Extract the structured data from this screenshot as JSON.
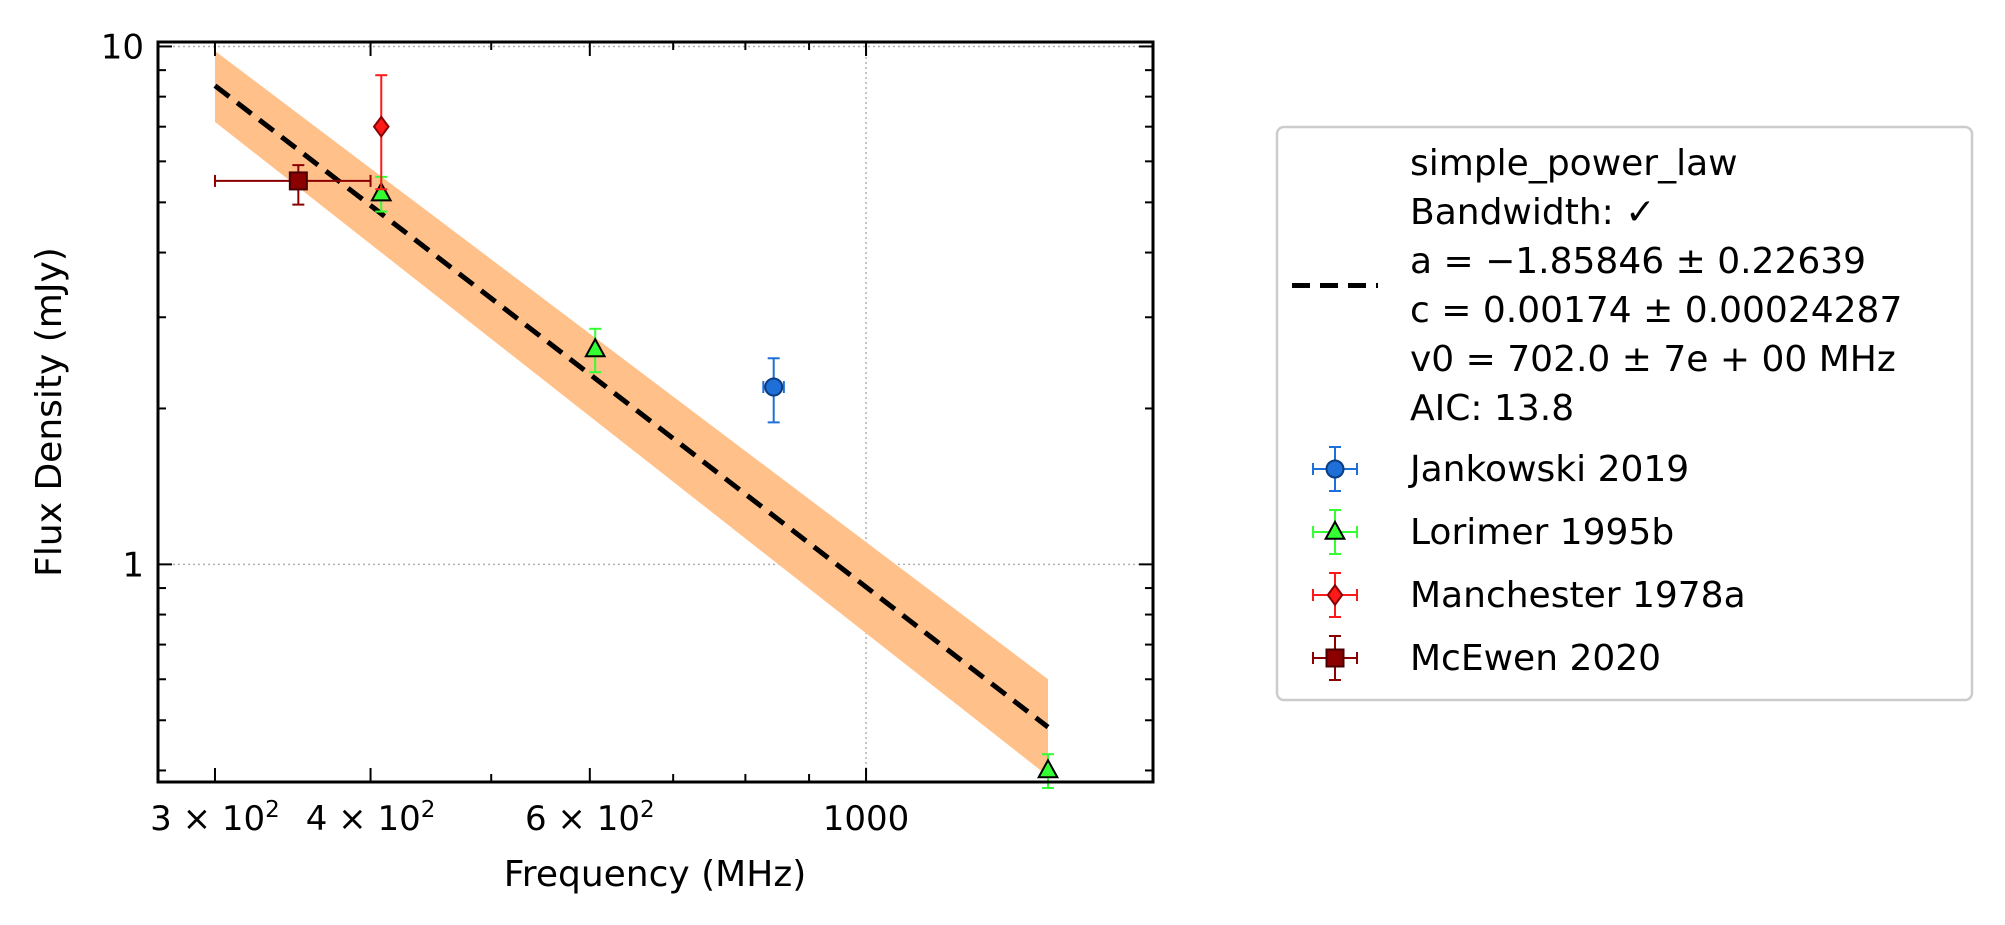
{
  "chart_data": {
    "type": "scatter",
    "title": "",
    "xlabel": "Frequency (MHz)",
    "ylabel": "Flux Density (mJy)",
    "xscale": "log",
    "yscale": "log",
    "xlim": [
      270,
      1700
    ],
    "ylim": [
      0.38,
      10.2
    ],
    "grid": true,
    "legend_position": "outside-right",
    "x_ticks": [
      {
        "value": 300,
        "label_main": "3 × 10",
        "label_sup": "2"
      },
      {
        "value": 400,
        "label_main": "4 × 10",
        "label_sup": "2"
      },
      {
        "value": 600,
        "label_main": "6 × 10",
        "label_sup": "2"
      },
      {
        "value": 1000,
        "label_main": "1000",
        "label_sup": ""
      }
    ],
    "y_ticks": [
      {
        "value": 1,
        "label": "1"
      },
      {
        "value": 10,
        "label": "10"
      }
    ],
    "fit": {
      "name": "simple_power_law",
      "legend_lines": [
        "simple_power_law",
        "Bandwidth: ✓",
        "a = −1.85846 ± 0.22639",
        "c = 0.00174 ± 0.00024287",
        "v0 = 702.0 ± 7e + 00 MHz",
        "AIC: 13.8"
      ],
      "line_color": "#000000",
      "band_color": "#ffc08a",
      "x_range": [
        300,
        1400
      ],
      "line": [
        {
          "x": 300,
          "y": 8.4
        },
        {
          "x": 1400,
          "y": 0.485
        }
      ],
      "band_upper": [
        {
          "x": 300,
          "y": 9.8
        },
        {
          "x": 1400,
          "y": 0.6
        }
      ],
      "band_lower": [
        {
          "x": 300,
          "y": 7.15
        },
        {
          "x": 1400,
          "y": 0.39
        }
      ]
    },
    "series": [
      {
        "name": "Jankowski 2019",
        "marker": "circle",
        "color": "#1f6fd8",
        "edge": "#0a3d80",
        "points": [
          {
            "x": 843,
            "y": 2.2,
            "xerr": 16,
            "ylo": 0.32,
            "yhi": 0.3
          }
        ]
      },
      {
        "name": "Lorimer 1995b",
        "marker": "triangle",
        "color": "#33ff33",
        "edge": "#1a7f1a",
        "points": [
          {
            "x": 408,
            "y": 5.2,
            "xerr": 0,
            "ylo": 0.4,
            "yhi": 0.4
          },
          {
            "x": 606,
            "y": 2.6,
            "xerr": 0,
            "ylo": 0.25,
            "yhi": 0.25
          },
          {
            "x": 1400,
            "y": 0.4,
            "xerr": 0,
            "ylo": 0.03,
            "yhi": 0.03
          }
        ]
      },
      {
        "name": "Manchester 1978a",
        "marker": "diamond",
        "color": "#ff1a1a",
        "edge": "#8b0000",
        "points": [
          {
            "x": 408,
            "y": 7.0,
            "xerr": 0,
            "ylo": 1.7,
            "yhi": 1.8
          }
        ]
      },
      {
        "name": "McEwen 2020",
        "marker": "square",
        "color": "#8b0000",
        "edge": "#4a0000",
        "points": [
          {
            "x": 350,
            "y": 5.5,
            "xerr_lo": 50,
            "xerr_hi": 50,
            "ylo": 0.55,
            "yhi": 0.4
          }
        ]
      }
    ]
  }
}
